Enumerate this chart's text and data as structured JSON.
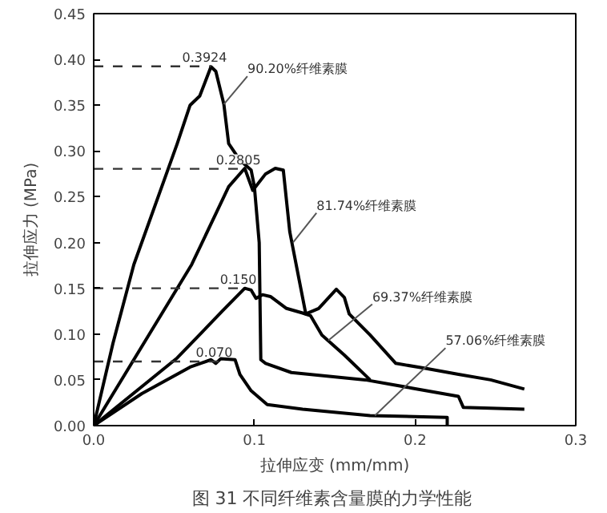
{
  "chart_data": {
    "type": "line",
    "xlabel": "拉伸应变 (mm/mm)",
    "ylabel": "拉伸应力 (MPa)",
    "xlim": [
      0,
      0.3
    ],
    "ylim": [
      0,
      0.45
    ],
    "xticks": [
      {
        "value": 0,
        "label": "0.0"
      },
      {
        "value": 0.1,
        "label": "0.1"
      },
      {
        "value": 0.2,
        "label": "0.2"
      },
      {
        "value": 0.3,
        "label": "0.3"
      }
    ],
    "yticks": [
      {
        "value": 0,
        "label": "0.00"
      },
      {
        "value": 0.05,
        "label": "0.05"
      },
      {
        "value": 0.1,
        "label": "0.10"
      },
      {
        "value": 0.15,
        "label": "0.15"
      },
      {
        "value": 0.2,
        "label": "0.20"
      },
      {
        "value": 0.25,
        "label": "0.25"
      },
      {
        "value": 0.3,
        "label": "0.30"
      },
      {
        "value": 0.35,
        "label": "0.35"
      },
      {
        "value": 0.4,
        "label": "0.40"
      },
      {
        "value": 0.45,
        "label": "0.45"
      }
    ],
    "grid": false,
    "marker": "none",
    "line_style": "solid",
    "series": [
      {
        "color": "#000000",
        "x": [
          0,
          0.012,
          0.025,
          0.052,
          0.06,
          0.066,
          0.073,
          0.076,
          0.081,
          0.084,
          0.091,
          0.098,
          0.1,
          0.103,
          0.104,
          0.107,
          0.123,
          0.169,
          0.198,
          0.227,
          0.23,
          0.268
        ],
        "values": [
          0,
          0.09,
          0.176,
          0.308,
          0.35,
          0.36,
          0.392,
          0.387,
          0.351,
          0.308,
          0.29,
          0.279,
          0.261,
          0.2,
          0.072,
          0.068,
          0.058,
          0.05,
          0.041,
          0.032,
          0.02,
          0.018
        ]
      },
      {
        "color": "#000000",
        "x": [
          0,
          0.061,
          0.084,
          0.094,
          0.099,
          0.107,
          0.113,
          0.118,
          0.122,
          0.128,
          0.132,
          0.14,
          0.151,
          0.156,
          0.159,
          0.172,
          0.188,
          0.205,
          0.227,
          0.247,
          0.268
        ],
        "values": [
          0,
          0.176,
          0.261,
          0.281,
          0.257,
          0.275,
          0.281,
          0.279,
          0.212,
          0.158,
          0.122,
          0.128,
          0.149,
          0.14,
          0.122,
          0.099,
          0.068,
          0.063,
          0.056,
          0.05,
          0.04
        ]
      },
      {
        "color": "#000000",
        "x": [
          0,
          0.052,
          0.08,
          0.094,
          0.098,
          0.101,
          0.105,
          0.11,
          0.12,
          0.13,
          0.135,
          0.142,
          0.156,
          0.172
        ],
        "values": [
          0,
          0.074,
          0.125,
          0.15,
          0.148,
          0.139,
          0.143,
          0.141,
          0.128,
          0.123,
          0.12,
          0.099,
          0.077,
          0.05
        ]
      },
      {
        "color": "#000000",
        "x": [
          0,
          0.03,
          0.06,
          0.073,
          0.076,
          0.079,
          0.088,
          0.091,
          0.098,
          0.108,
          0.13,
          0.172,
          0.22,
          0.22
        ],
        "values": [
          0,
          0.035,
          0.064,
          0.072,
          0.068,
          0.073,
          0.072,
          0.056,
          0.038,
          0.023,
          0.018,
          0.011,
          0.009,
          0
        ]
      }
    ],
    "ref_lines": [
      {
        "axis": "y",
        "value": 0.3924,
        "label": "0.3924",
        "line_style": "dashed"
      },
      {
        "axis": "y",
        "value": 0.2805,
        "label": "0.2805",
        "line_style": "dashed"
      },
      {
        "axis": "y",
        "value": 0.15,
        "label": "0.150",
        "line_style": "dashed"
      },
      {
        "axis": "y",
        "value": 0.07,
        "label": "0.070",
        "line_style": "dashed"
      }
    ],
    "annotations": [
      {
        "text": "90.20%纤维素膜",
        "x": 0.081,
        "y": 0.351
      },
      {
        "text": "81.74%纤维素膜",
        "x": 0.124,
        "y": 0.2
      },
      {
        "text": "69.37%纤维素膜",
        "x": 0.146,
        "y": 0.093
      },
      {
        "text": "57.06%纤维素膜",
        "x": 0.175,
        "y": 0.011
      },
      "图 31  不同纤维素含量膜的力学性能"
    ]
  }
}
